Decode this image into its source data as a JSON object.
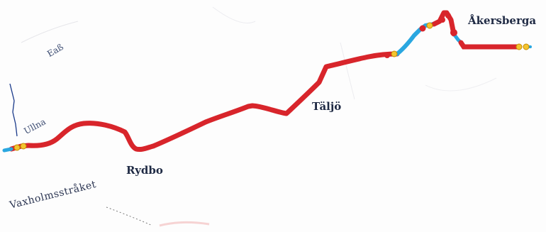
{
  "map": {
    "labels": {
      "akersberga": "Åkersberga",
      "taljo": "Täljö",
      "rydbo": "Rydbo",
      "ullna": "Ullna",
      "eab": "Eaß",
      "vaxholmsstraket": "Vaxholmsstråket"
    },
    "colors": {
      "route": "#d8252b",
      "route_blue": "#2aa7e0",
      "marker_yellow": "#f4c430",
      "marker_red": "#d8252b",
      "border_line": "#1a3a8a"
    },
    "icons": {
      "markers": "route-point-marker"
    }
  }
}
